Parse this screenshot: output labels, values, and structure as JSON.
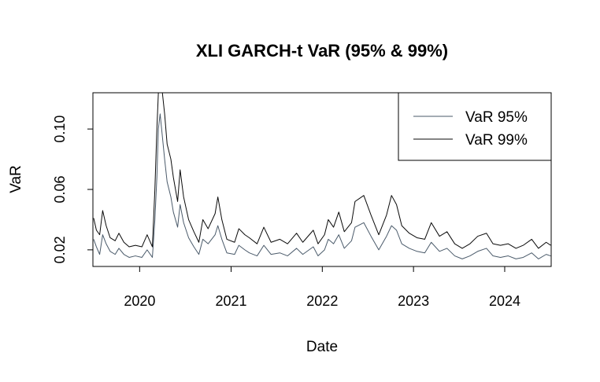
{
  "chart_data": {
    "type": "line",
    "title": "XLI GARCH-t VaR (95% & 99%)",
    "xlabel": "Date",
    "ylabel": "VaR",
    "x_ticks": [
      "2020",
      "2021",
      "2022",
      "2023",
      "2024"
    ],
    "y_ticks": [
      "0.02",
      "0.06",
      "0.10"
    ],
    "xlim": [
      "2019-06-28",
      "2024-07-05"
    ],
    "ylim": [
      0.009,
      0.124
    ],
    "grid": false,
    "legend_position": "top-right",
    "series": [
      {
        "name": "VaR 95%",
        "color": "#4a5a6a",
        "points": [
          [
            "2019-07-01",
            0.027
          ],
          [
            "2019-07-12",
            0.022
          ],
          [
            "2019-07-25",
            0.017
          ],
          [
            "2019-08-06",
            0.03
          ],
          [
            "2019-08-20",
            0.024
          ],
          [
            "2019-09-05",
            0.019
          ],
          [
            "2019-09-25",
            0.017
          ],
          [
            "2019-10-10",
            0.021
          ],
          [
            "2019-10-30",
            0.017
          ],
          [
            "2019-11-20",
            0.015
          ],
          [
            "2019-12-15",
            0.016
          ],
          [
            "2020-01-10",
            0.015
          ],
          [
            "2020-01-31",
            0.02
          ],
          [
            "2020-02-21",
            0.015
          ],
          [
            "2020-03-02",
            0.04
          ],
          [
            "2020-03-10",
            0.068
          ],
          [
            "2020-03-16",
            0.1
          ],
          [
            "2020-03-23",
            0.11
          ],
          [
            "2020-04-01",
            0.095
          ],
          [
            "2020-04-10",
            0.08
          ],
          [
            "2020-04-20",
            0.065
          ],
          [
            "2020-05-05",
            0.055
          ],
          [
            "2020-05-15",
            0.045
          ],
          [
            "2020-06-01",
            0.035
          ],
          [
            "2020-06-11",
            0.05
          ],
          [
            "2020-06-25",
            0.038
          ],
          [
            "2020-07-15",
            0.028
          ],
          [
            "2020-08-05",
            0.022
          ],
          [
            "2020-08-25",
            0.017
          ],
          [
            "2020-09-10",
            0.027
          ],
          [
            "2020-10-01",
            0.024
          ],
          [
            "2020-10-29",
            0.03
          ],
          [
            "2020-11-09",
            0.036
          ],
          [
            "2020-11-25",
            0.027
          ],
          [
            "2020-12-15",
            0.018
          ],
          [
            "2021-01-15",
            0.017
          ],
          [
            "2021-02-01",
            0.023
          ],
          [
            "2021-02-25",
            0.02
          ],
          [
            "2021-03-15",
            0.018
          ],
          [
            "2021-04-15",
            0.016
          ],
          [
            "2021-05-12",
            0.023
          ],
          [
            "2021-06-10",
            0.017
          ],
          [
            "2021-07-15",
            0.018
          ],
          [
            "2021-08-15",
            0.016
          ],
          [
            "2021-09-20",
            0.021
          ],
          [
            "2021-10-15",
            0.017
          ],
          [
            "2021-11-26",
            0.022
          ],
          [
            "2021-12-15",
            0.016
          ],
          [
            "2022-01-10",
            0.02
          ],
          [
            "2022-01-25",
            0.027
          ],
          [
            "2022-02-15",
            0.024
          ],
          [
            "2022-03-08",
            0.03
          ],
          [
            "2022-03-30",
            0.021
          ],
          [
            "2022-04-28",
            0.026
          ],
          [
            "2022-05-12",
            0.035
          ],
          [
            "2022-06-16",
            0.038
          ],
          [
            "2022-07-15",
            0.029
          ],
          [
            "2022-08-15",
            0.02
          ],
          [
            "2022-09-15",
            0.029
          ],
          [
            "2022-10-05",
            0.036
          ],
          [
            "2022-10-25",
            0.033
          ],
          [
            "2022-11-15",
            0.024
          ],
          [
            "2022-12-15",
            0.021
          ],
          [
            "2023-01-15",
            0.019
          ],
          [
            "2023-02-15",
            0.018
          ],
          [
            "2023-03-13",
            0.025
          ],
          [
            "2023-04-15",
            0.019
          ],
          [
            "2023-05-15",
            0.021
          ],
          [
            "2023-06-15",
            0.016
          ],
          [
            "2023-07-15",
            0.014
          ],
          [
            "2023-08-15",
            0.016
          ],
          [
            "2023-09-15",
            0.019
          ],
          [
            "2023-10-20",
            0.021
          ],
          [
            "2023-11-15",
            0.016
          ],
          [
            "2023-12-15",
            0.015
          ],
          [
            "2024-01-15",
            0.016
          ],
          [
            "2024-02-15",
            0.014
          ],
          [
            "2024-03-15",
            0.015
          ],
          [
            "2024-04-18",
            0.018
          ],
          [
            "2024-05-15",
            0.014
          ],
          [
            "2024-06-15",
            0.017
          ],
          [
            "2024-07-03",
            0.016
          ]
        ]
      },
      {
        "name": "VaR 99%",
        "color": "#0a0a0a",
        "points": [
          [
            "2019-07-01",
            0.041
          ],
          [
            "2019-07-12",
            0.033
          ],
          [
            "2019-07-25",
            0.03
          ],
          [
            "2019-08-06",
            0.046
          ],
          [
            "2019-08-20",
            0.036
          ],
          [
            "2019-09-05",
            0.028
          ],
          [
            "2019-09-25",
            0.026
          ],
          [
            "2019-10-10",
            0.031
          ],
          [
            "2019-10-30",
            0.025
          ],
          [
            "2019-11-20",
            0.022
          ],
          [
            "2019-12-15",
            0.023
          ],
          [
            "2020-01-10",
            0.022
          ],
          [
            "2020-01-31",
            0.03
          ],
          [
            "2020-02-21",
            0.022
          ],
          [
            "2020-03-02",
            0.06
          ],
          [
            "2020-03-10",
            0.1
          ],
          [
            "2020-03-16",
            0.124
          ],
          [
            "2020-03-23",
            0.124
          ],
          [
            "2020-04-01",
            0.124
          ],
          [
            "2020-04-10",
            0.11
          ],
          [
            "2020-04-20",
            0.09
          ],
          [
            "2020-05-05",
            0.08
          ],
          [
            "2020-05-15",
            0.068
          ],
          [
            "2020-06-01",
            0.052
          ],
          [
            "2020-06-11",
            0.073
          ],
          [
            "2020-06-25",
            0.055
          ],
          [
            "2020-07-15",
            0.04
          ],
          [
            "2020-08-05",
            0.032
          ],
          [
            "2020-08-25",
            0.025
          ],
          [
            "2020-09-10",
            0.04
          ],
          [
            "2020-10-01",
            0.034
          ],
          [
            "2020-10-29",
            0.044
          ],
          [
            "2020-11-09",
            0.055
          ],
          [
            "2020-11-25",
            0.04
          ],
          [
            "2020-12-15",
            0.027
          ],
          [
            "2021-01-15",
            0.025
          ],
          [
            "2021-02-01",
            0.034
          ],
          [
            "2021-02-25",
            0.03
          ],
          [
            "2021-03-15",
            0.028
          ],
          [
            "2021-04-15",
            0.024
          ],
          [
            "2021-05-12",
            0.035
          ],
          [
            "2021-06-10",
            0.025
          ],
          [
            "2021-07-15",
            0.027
          ],
          [
            "2021-08-15",
            0.024
          ],
          [
            "2021-09-20",
            0.031
          ],
          [
            "2021-10-15",
            0.025
          ],
          [
            "2021-11-26",
            0.033
          ],
          [
            "2021-12-15",
            0.024
          ],
          [
            "2022-01-10",
            0.03
          ],
          [
            "2022-01-25",
            0.04
          ],
          [
            "2022-02-15",
            0.035
          ],
          [
            "2022-03-08",
            0.045
          ],
          [
            "2022-03-30",
            0.032
          ],
          [
            "2022-04-28",
            0.038
          ],
          [
            "2022-05-12",
            0.052
          ],
          [
            "2022-06-16",
            0.056
          ],
          [
            "2022-07-15",
            0.043
          ],
          [
            "2022-08-15",
            0.03
          ],
          [
            "2022-09-15",
            0.043
          ],
          [
            "2022-10-05",
            0.056
          ],
          [
            "2022-10-25",
            0.05
          ],
          [
            "2022-11-15",
            0.036
          ],
          [
            "2022-12-15",
            0.031
          ],
          [
            "2023-01-15",
            0.028
          ],
          [
            "2023-02-15",
            0.027
          ],
          [
            "2023-03-13",
            0.038
          ],
          [
            "2023-04-15",
            0.029
          ],
          [
            "2023-05-15",
            0.032
          ],
          [
            "2023-06-15",
            0.024
          ],
          [
            "2023-07-15",
            0.021
          ],
          [
            "2023-08-15",
            0.024
          ],
          [
            "2023-09-15",
            0.029
          ],
          [
            "2023-10-20",
            0.031
          ],
          [
            "2023-11-15",
            0.024
          ],
          [
            "2023-12-15",
            0.023
          ],
          [
            "2024-01-15",
            0.024
          ],
          [
            "2024-02-15",
            0.021
          ],
          [
            "2024-03-15",
            0.023
          ],
          [
            "2024-04-18",
            0.027
          ],
          [
            "2024-05-15",
            0.021
          ],
          [
            "2024-06-15",
            0.025
          ],
          [
            "2024-07-03",
            0.023
          ]
        ]
      }
    ]
  }
}
